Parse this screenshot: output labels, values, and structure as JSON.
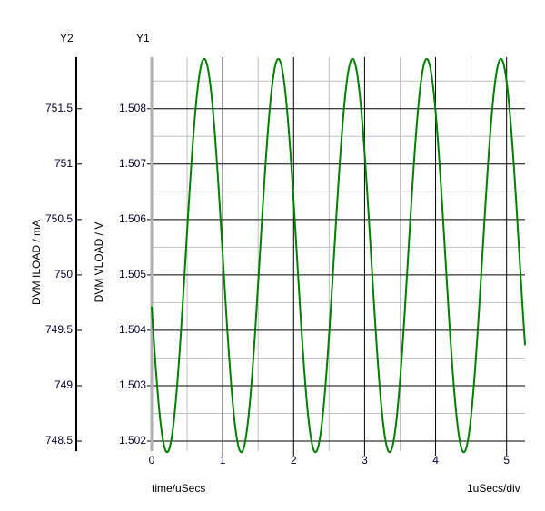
{
  "chart_data": {
    "type": "line",
    "xlabel": "time/uSecs",
    "x_scale_label": "1uSecs/div",
    "y1": {
      "header": "Y1",
      "label": "DVM VLOAD / V",
      "ticks": [
        "1.508",
        "1.507",
        "1.506",
        "1.505",
        "1.504",
        "1.503",
        "1.502"
      ],
      "tick_values": [
        1.508,
        1.507,
        1.506,
        1.505,
        1.504,
        1.503,
        1.502
      ],
      "range": [
        1.50182,
        1.50893
      ]
    },
    "y2": {
      "header": "Y2",
      "label": "DVM ILOAD / mA",
      "ticks": [
        "751.5",
        "751",
        "750.5",
        "750",
        "749.5",
        "749",
        "748.5"
      ],
      "tick_values": [
        751.5,
        751,
        750.5,
        750,
        749.5,
        749,
        748.5
      ]
    },
    "x_ticks": [
      "0",
      "1",
      "2",
      "3",
      "4",
      "5"
    ],
    "x_tick_values": [
      0,
      1,
      2,
      3,
      4,
      5
    ],
    "xlim": [
      0,
      5.26
    ],
    "grid": true,
    "series": [
      {
        "axis": "y1",
        "color": "#008000",
        "waveform": {
          "shape": "sine",
          "offset": 1.50535,
          "amplitude": 0.00355,
          "period": 1.045,
          "first_peak_x": 0.74
        }
      }
    ]
  }
}
